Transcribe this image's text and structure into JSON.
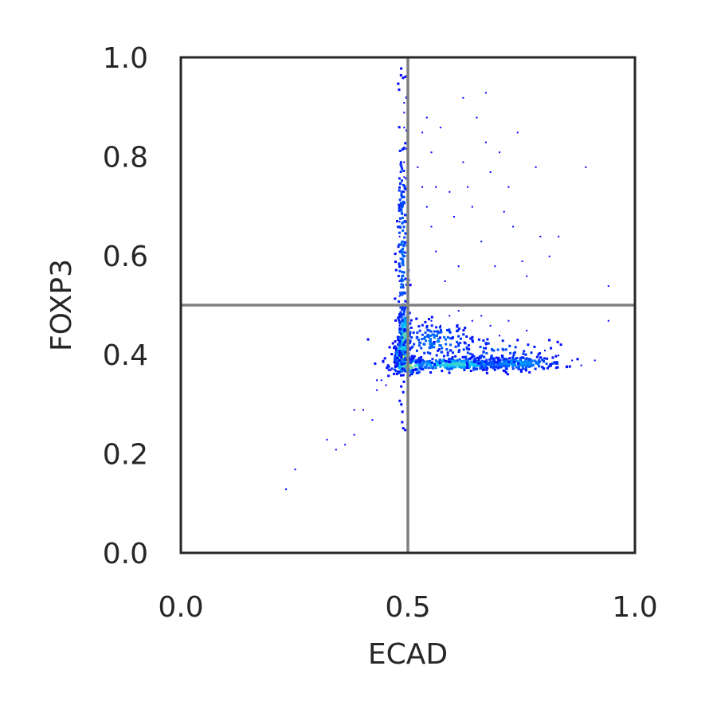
{
  "chart_data": {
    "type": "scatter",
    "style": "density",
    "title": "",
    "xlabel": "ECAD",
    "ylabel": "FOXP3",
    "xlim": [
      0.0,
      1.0
    ],
    "ylim": [
      0.0,
      1.0
    ],
    "xticks": [
      "0.0",
      "0.5",
      "1.0"
    ],
    "yticks": [
      "0.0",
      "0.2",
      "0.4",
      "0.6",
      "0.8",
      "1.0"
    ],
    "grid": false,
    "quadrant_lines": {
      "x": 0.5,
      "y": 0.5,
      "color": "#808080"
    },
    "colors": {
      "low": "#0000ff",
      "mid": "#00c8ff",
      "high": "#e6f04a",
      "frame": "#262626"
    },
    "points": [
      [
        0.23,
        0.13
      ],
      [
        0.25,
        0.17
      ],
      [
        0.32,
        0.23
      ],
      [
        0.34,
        0.21
      ],
      [
        0.36,
        0.22
      ],
      [
        0.38,
        0.24
      ],
      [
        0.38,
        0.29
      ],
      [
        0.4,
        0.29
      ],
      [
        0.42,
        0.27
      ],
      [
        0.43,
        0.33
      ],
      [
        0.43,
        0.35
      ],
      [
        0.44,
        0.35
      ],
      [
        0.45,
        0.34
      ],
      [
        0.46,
        0.37
      ],
      [
        0.47,
        0.38
      ],
      [
        0.47,
        0.4
      ],
      [
        0.48,
        0.39
      ],
      [
        0.48,
        0.41
      ],
      [
        0.48,
        0.43
      ],
      [
        0.48,
        0.46
      ],
      [
        0.48,
        0.48
      ],
      [
        0.48,
        0.52
      ],
      [
        0.48,
        0.55
      ],
      [
        0.48,
        0.58
      ],
      [
        0.48,
        0.61
      ],
      [
        0.48,
        0.64
      ],
      [
        0.48,
        0.67
      ],
      [
        0.48,
        0.7
      ],
      [
        0.49,
        0.73
      ],
      [
        0.49,
        0.76
      ],
      [
        0.49,
        0.79
      ],
      [
        0.49,
        0.82
      ],
      [
        0.49,
        0.86
      ],
      [
        0.49,
        0.89
      ],
      [
        0.49,
        0.91
      ],
      [
        0.52,
        0.78
      ],
      [
        0.53,
        0.85
      ],
      [
        0.53,
        0.74
      ],
      [
        0.54,
        0.7
      ],
      [
        0.54,
        0.88
      ],
      [
        0.55,
        0.81
      ],
      [
        0.55,
        0.66
      ],
      [
        0.56,
        0.74
      ],
      [
        0.56,
        0.61
      ],
      [
        0.57,
        0.86
      ],
      [
        0.58,
        0.55
      ],
      [
        0.59,
        0.73
      ],
      [
        0.6,
        0.68
      ],
      [
        0.61,
        0.58
      ],
      [
        0.62,
        0.92
      ],
      [
        0.62,
        0.79
      ],
      [
        0.63,
        0.74
      ],
      [
        0.64,
        0.7
      ],
      [
        0.65,
        0.88
      ],
      [
        0.66,
        0.63
      ],
      [
        0.67,
        0.93
      ],
      [
        0.67,
        0.83
      ],
      [
        0.68,
        0.77
      ],
      [
        0.69,
        0.58
      ],
      [
        0.7,
        0.81
      ],
      [
        0.71,
        0.69
      ],
      [
        0.72,
        0.74
      ],
      [
        0.73,
        0.66
      ],
      [
        0.74,
        0.85
      ],
      [
        0.75,
        0.59
      ],
      [
        0.76,
        0.56
      ],
      [
        0.78,
        0.78
      ],
      [
        0.79,
        0.64
      ],
      [
        0.81,
        0.6
      ],
      [
        0.83,
        0.64
      ],
      [
        0.89,
        0.78
      ],
      [
        0.94,
        0.54
      ],
      [
        0.94,
        0.47
      ],
      [
        0.55,
        0.47
      ],
      [
        0.57,
        0.46
      ],
      [
        0.59,
        0.48
      ],
      [
        0.61,
        0.49
      ],
      [
        0.62,
        0.45
      ],
      [
        0.64,
        0.47
      ],
      [
        0.66,
        0.48
      ],
      [
        0.68,
        0.46
      ],
      [
        0.7,
        0.44
      ],
      [
        0.72,
        0.47
      ],
      [
        0.74,
        0.43
      ],
      [
        0.76,
        0.45
      ],
      [
        0.8,
        0.41
      ],
      [
        0.83,
        0.4
      ],
      [
        0.86,
        0.39
      ],
      [
        0.88,
        0.38
      ],
      [
        0.91,
        0.39
      ]
    ],
    "clusters": [
      {
        "cx": 0.485,
        "cy": 0.4,
        "sx": 0.008,
        "sy": 0.015,
        "n": 260,
        "intensity": 1.0
      },
      {
        "cx": 0.49,
        "cy": 0.44,
        "sx": 0.007,
        "sy": 0.03,
        "n": 160,
        "intensity": 0.7
      },
      {
        "cx": 0.5,
        "cy": 0.38,
        "sx": 0.02,
        "sy": 0.008,
        "n": 120,
        "intensity": 0.85
      },
      {
        "cx": 0.6,
        "cy": 0.383,
        "sx": 0.06,
        "sy": 0.006,
        "n": 320,
        "intensity": 0.65
      },
      {
        "cx": 0.74,
        "cy": 0.385,
        "sx": 0.05,
        "sy": 0.007,
        "n": 200,
        "intensity": 0.4
      },
      {
        "cx": 0.56,
        "cy": 0.43,
        "sx": 0.04,
        "sy": 0.02,
        "n": 150,
        "intensity": 0.3
      },
      {
        "cx": 0.485,
        "cy": 0.6,
        "sx": 0.006,
        "sy": 0.14,
        "n": 180,
        "intensity": 0.25
      },
      {
        "cx": 0.68,
        "cy": 0.41,
        "sx": 0.07,
        "sy": 0.015,
        "n": 80,
        "intensity": 0.2
      }
    ]
  }
}
